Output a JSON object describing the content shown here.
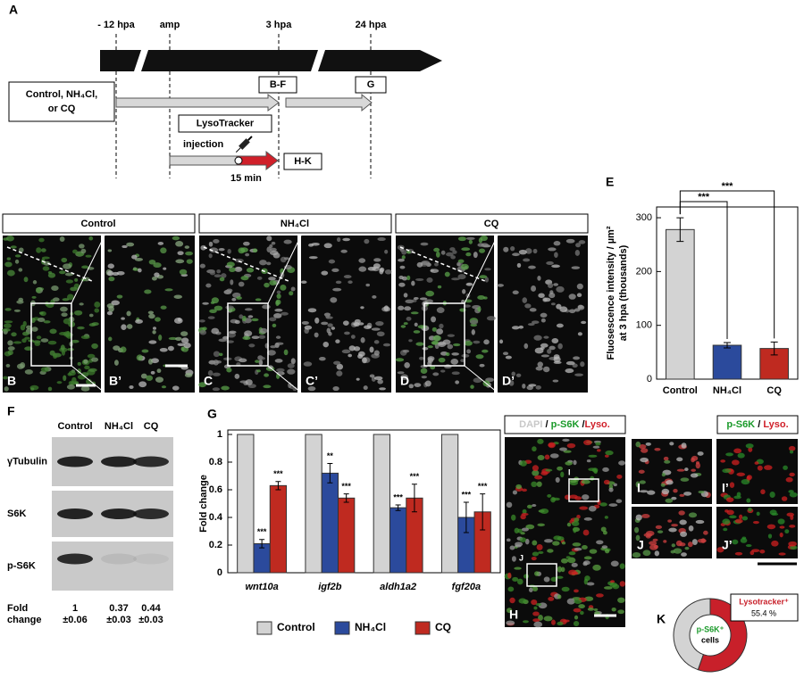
{
  "panel_a": {
    "letter": "A",
    "times": [
      "- 12 hpa",
      "amp",
      "3 hpa",
      "24 hpa"
    ],
    "treatment": [
      "Control, NH₄Cl,",
      "or CQ"
    ],
    "boxes": [
      "B-F",
      "G",
      "LysoTracker",
      "H-K"
    ],
    "injection": "injection",
    "duration": "15 min"
  },
  "panel_bd": {
    "groups": [
      {
        "title": "Control",
        "letters": [
          "B",
          "B’"
        ]
      },
      {
        "title": "NH₄Cl",
        "letters": [
          "C",
          "C’"
        ]
      },
      {
        "title": "CQ",
        "letters": [
          "D",
          "D’"
        ]
      }
    ]
  },
  "panel_f": {
    "letter": "F",
    "columns": [
      "Control",
      "NH₄Cl",
      "CQ"
    ],
    "rows": [
      "γTubulin",
      "S6K",
      "p-S6K"
    ],
    "fold_label": [
      "Fold",
      "change"
    ],
    "fold_values": [
      [
        "1",
        "±0.06"
      ],
      [
        "0.37",
        "±0.03"
      ],
      [
        "0.44",
        "±0.03"
      ]
    ]
  },
  "panel_hj": {
    "header": [
      "DAPI",
      "/",
      "p-S6K",
      "/",
      "Lyso."
    ],
    "header_right": [
      "p-S6K",
      "/",
      "Lyso."
    ],
    "letters": [
      "H",
      "I",
      "J",
      "I’",
      "J’"
    ],
    "insets": [
      "I",
      "J"
    ]
  },
  "chart_data": [
    {
      "type": "bar",
      "letter": "E",
      "ylabel": [
        "Fluosescence intensity / µm²",
        "at 3 hpa (thousands)"
      ],
      "categories": [
        "Control",
        "NH₄Cl",
        "CQ"
      ],
      "values": [
        278,
        63,
        57
      ],
      "errors": [
        22,
        5,
        12
      ],
      "colors": [
        "#d3d3d3",
        "#2b4a9c",
        "#bf2a20"
      ],
      "ylim": [
        0,
        320
      ],
      "yticks": [
        0,
        100,
        200,
        300
      ],
      "significance": [
        "***",
        "***"
      ]
    },
    {
      "type": "grouped_bar",
      "letter": "G",
      "ylabel": "Fold change",
      "categories": [
        "wnt10a",
        "igf2b",
        "aldh1a2",
        "fgf20a"
      ],
      "series": [
        {
          "name": "Control",
          "color": "#d3d3d3",
          "values": [
            1,
            1,
            1,
            1
          ]
        },
        {
          "name": "NH₄Cl",
          "color": "#2b4a9c",
          "values": [
            0.21,
            0.72,
            0.47,
            0.4
          ],
          "errors": [
            0.03,
            0.07,
            0.02,
            0.11
          ],
          "significance": [
            "***",
            "**",
            "***",
            "***"
          ]
        },
        {
          "name": "CQ",
          "color": "#bf2a20",
          "values": [
            0.63,
            0.54,
            0.54,
            0.44
          ],
          "errors": [
            0.03,
            0.03,
            0.1,
            0.13
          ],
          "significance": [
            "***",
            "***",
            "***",
            "***"
          ]
        }
      ],
      "ylim": [
        0,
        1
      ],
      "yticks": [
        0,
        0.2,
        0.4,
        0.6,
        0.8,
        1
      ]
    },
    {
      "type": "donut",
      "letter": "K",
      "categories": [
        "Lysotracker⁺",
        null
      ],
      "values": [
        55.4,
        44.6
      ],
      "value_labels": [
        "55.4 %",
        null
      ],
      "colors": [
        "#c8202a",
        "#d3d3d3"
      ],
      "center_label": [
        "p-S6K⁺",
        "cells"
      ]
    }
  ]
}
